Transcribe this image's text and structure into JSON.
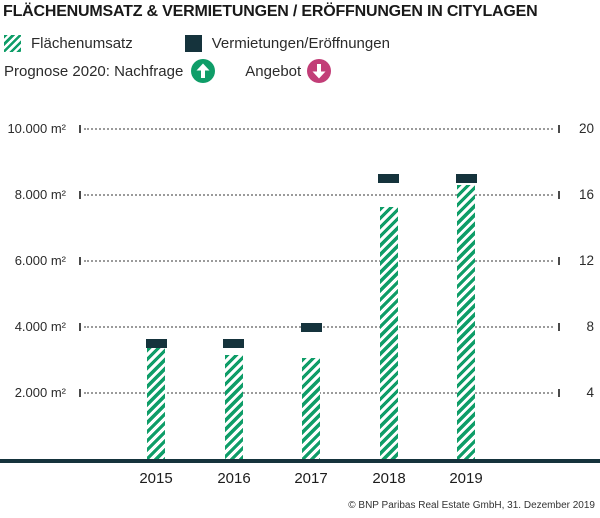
{
  "title": "FLÄCHENUMSATZ & VERMIETUNGEN / ERÖFFNUNGEN IN CITYLAGEN",
  "legend": {
    "series1_label": "Flächenumsatz",
    "series2_label": "Vermietungen/Eröffnungen"
  },
  "forecast": {
    "demand_label": "Prognose 2020: Nachfrage",
    "demand_direction": "up",
    "supply_label": "Angebot",
    "supply_direction": "down"
  },
  "footer": "© BNP Paribas Real Estate GmbH, 31. Dezember 2019",
  "colors": {
    "green": "#0f9d68",
    "dark_teal": "#15333c",
    "magenta": "#c23d77",
    "grid_dots": "#9b9b9b",
    "text": "#191919"
  },
  "chart_data": {
    "type": "bar",
    "title": "FLÄCHENUMSATZ & VERMIETUNGEN / ERÖFFNUNGEN IN CITYLAGEN",
    "categories": [
      "2015",
      "2016",
      "2017",
      "2018",
      "2019"
    ],
    "series": [
      {
        "name": "Flächenumsatz",
        "axis": "left",
        "unit": "m²",
        "style": "hatched-bar",
        "values": [
          3650,
          3150,
          3050,
          7650,
          8300
        ]
      },
      {
        "name": "Vermietungen/Eröffnungen",
        "axis": "right",
        "unit": "Anzahl",
        "style": "dash-marker",
        "values": [
          7,
          7,
          8,
          17,
          17
        ]
      }
    ],
    "left_axis": {
      "tick_labels": [
        "10.000 m²",
        "8.000 m²",
        "6.000 m²",
        "4.000 m²",
        "2.000 m²"
      ],
      "tick_values": [
        10000,
        8000,
        6000,
        4000,
        2000
      ],
      "range": [
        0,
        10000
      ]
    },
    "right_axis": {
      "tick_labels": [
        "20",
        "16",
        "12",
        "8",
        "4"
      ],
      "tick_values": [
        20,
        16,
        12,
        8,
        4
      ],
      "range": [
        0,
        20
      ]
    },
    "grid": "dotted-horizontal",
    "legend_position": "top-left",
    "annotations": [
      "Prognose 2020: Nachfrage ↑",
      "Angebot ↓"
    ]
  }
}
